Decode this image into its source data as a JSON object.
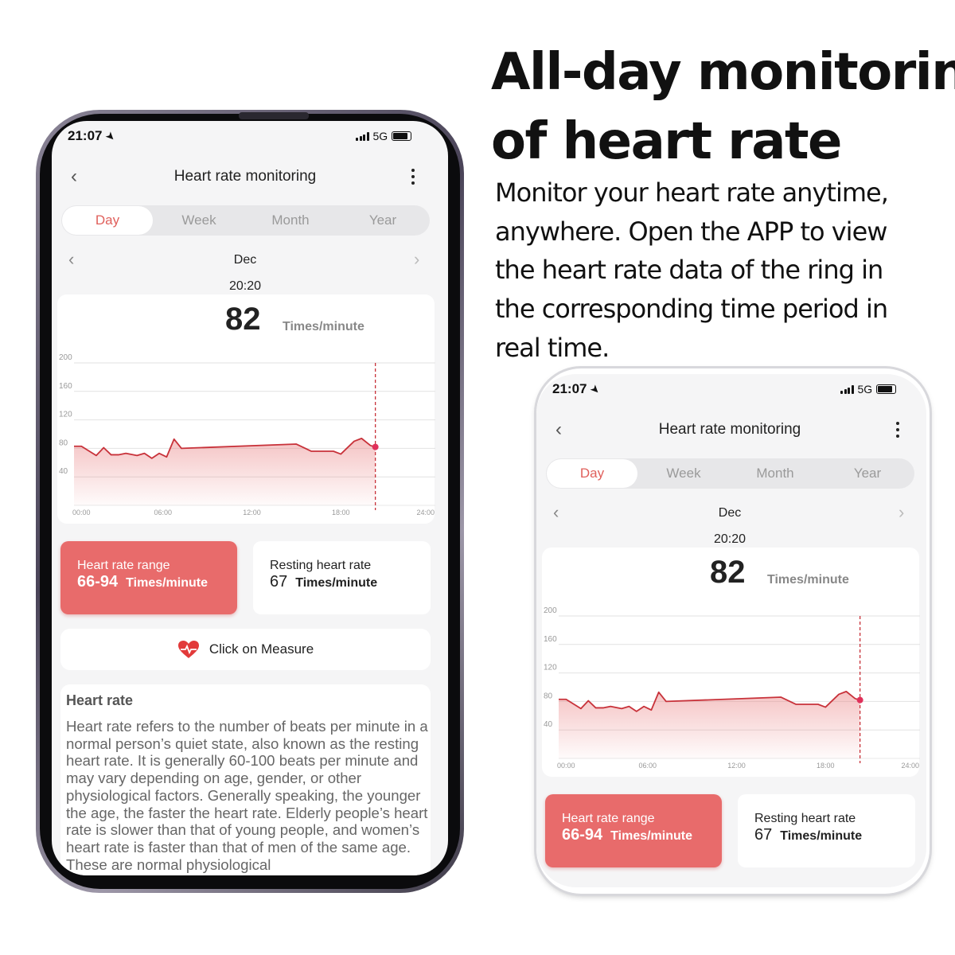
{
  "headline": {
    "line1": "All-day monitoring",
    "line2": "of heart rate"
  },
  "description": [
    "Monitor your heart rate anytime,",
    "anywhere. Open the APP to view",
    "the heart rate data of the ring in",
    "the corresponding time period in",
    "real time."
  ],
  "app": {
    "status": {
      "time": "21:07",
      "network": "5G",
      "location_icon": "location-arrow-icon",
      "signal_icon": "signal-bars-icon",
      "battery_icon": "battery-icon"
    },
    "header": {
      "title": "Heart rate monitoring",
      "back_icon": "chevron-left-icon",
      "menu_icon": "more-vertical-icon"
    },
    "tabs": [
      {
        "label": "Day",
        "active": true
      },
      {
        "label": "Week"
      },
      {
        "label": "Month"
      },
      {
        "label": "Year"
      }
    ],
    "period": {
      "label": "Dec",
      "prev_icon": "chevron-left-icon",
      "next_icon": "chevron-right-icon"
    },
    "selected": {
      "time": "20:20",
      "value": "82",
      "unit": "Times/minute"
    },
    "stats": {
      "range": {
        "label": "Heart rate range",
        "value": "66-94",
        "unit": "Times/minute"
      },
      "resting": {
        "label": "Resting heart rate",
        "value": "67",
        "unit": "Times/minute"
      }
    },
    "measure": {
      "label": "Click on Measure",
      "icon": "heart-pulse-icon"
    },
    "info": {
      "title": "Heart rate",
      "body": "Heart rate refers to the number of beats per minute in a normal person’s quiet state, also known as the resting heart rate. It is generally 60-100 beats per minute and may vary depending on age, gender, or other physiological factors. Generally speaking, the younger the age, the faster the heart rate. Elderly people’s heart rate is slower than that of young people, and women’s heart rate is faster than that of men of the same age. These are normal physiological"
    },
    "colors": {
      "accent": "#e0605c",
      "card_red": "#e86b6b",
      "line": "#c8323a",
      "background": "#f5f5f6"
    }
  },
  "chart_data": {
    "type": "area",
    "x_unit": "hour of day",
    "x_ticks": [
      "00:00",
      "06:00",
      "12:00",
      "18:00",
      "24:00"
    ],
    "y_ticks": [
      "200",
      "160",
      "120",
      "80",
      "40"
    ],
    "xlim": [
      0,
      24
    ],
    "ylim": [
      0,
      200
    ],
    "grid": true,
    "x": [
      0,
      0.5,
      1.5,
      2,
      2.5,
      3,
      3.5,
      4.25,
      4.75,
      5.25,
      5.75,
      6.25,
      6.75,
      7.25,
      15,
      16,
      17.5,
      18,
      18.9,
      19.4,
      20,
      20.33
    ],
    "y": [
      83,
      83,
      70,
      81,
      71,
      71,
      73,
      70,
      73,
      66,
      73,
      68,
      93,
      80,
      86,
      76,
      76,
      72,
      90,
      94,
      84,
      82
    ],
    "marker": {
      "x": 20.33,
      "y": 82,
      "label": "20:20"
    }
  }
}
